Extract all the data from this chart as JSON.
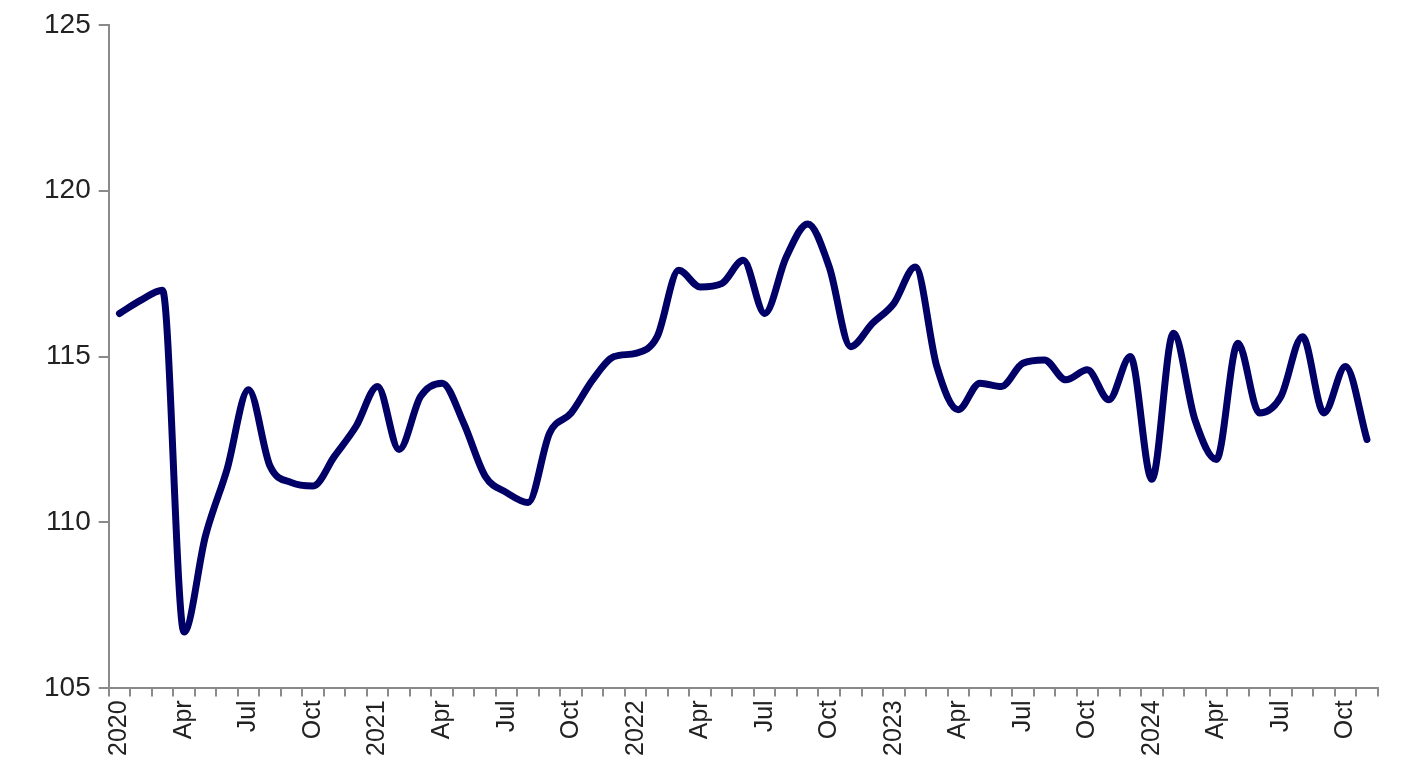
{
  "chart_data": {
    "type": "line",
    "categories": [
      "2020",
      null,
      null,
      "Apr",
      null,
      null,
      "Jul",
      null,
      null,
      "Oct",
      null,
      null,
      "2021",
      null,
      null,
      "Apr",
      null,
      null,
      "Jul",
      null,
      null,
      "Oct",
      null,
      null,
      "2022",
      null,
      null,
      "Apr",
      null,
      null,
      "Jul",
      null,
      null,
      "Oct",
      null,
      null,
      "2023",
      null,
      null,
      "Apr",
      null,
      null,
      "Jul",
      null,
      null,
      "Oct",
      null,
      null,
      "2024",
      null,
      null,
      "Apr",
      null,
      null,
      "Jul",
      null,
      null,
      "Oct",
      null
    ],
    "series": [
      {
        "color": "#000066",
        "values": [
          116.3,
          116.7,
          117.0,
          106.7,
          109.6,
          111.6,
          114.0,
          111.7,
          111.2,
          111.1,
          112.0,
          112.9,
          114.1,
          112.2,
          113.8,
          114.2,
          113.0,
          111.4,
          110.9,
          110.6,
          112.7,
          113.3,
          114.3,
          115.0,
          115.1,
          115.6,
          117.6,
          117.1,
          117.2,
          117.9,
          116.3,
          118.0,
          119.0,
          117.7,
          115.3,
          116.0,
          116.6,
          117.7,
          114.7,
          113.4,
          114.2,
          114.1,
          114.8,
          114.9,
          114.3,
          114.6,
          113.7,
          115.0,
          111.3,
          115.7,
          113.1,
          111.9,
          115.4,
          113.3,
          113.8,
          115.6,
          113.3,
          114.7,
          112.5
        ]
      }
    ],
    "ylim": [
      105,
      125
    ],
    "yticks": [
      105,
      110,
      115,
      120,
      125
    ],
    "marker": "none",
    "line_style": "solid"
  }
}
